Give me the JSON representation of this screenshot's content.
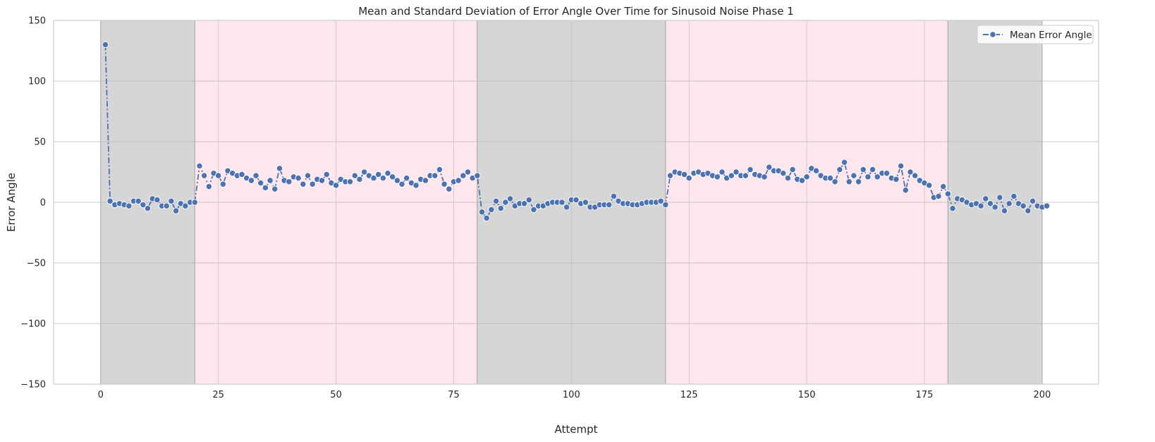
{
  "chart_data": {
    "type": "line",
    "title": "Mean and Standard Deviation of Error Angle Over Time for Sinusoid Noise Phase 1",
    "xlabel": "Attempt",
    "ylabel": "Error Angle",
    "xlim": [
      -10,
      212
    ],
    "ylim": [
      -150,
      150
    ],
    "xticks": [
      0,
      25,
      50,
      75,
      100,
      125,
      150,
      175,
      200
    ],
    "yticks": [
      -150,
      -100,
      -50,
      0,
      50,
      100,
      150
    ],
    "xtick_labels": [
      "0",
      "25",
      "50",
      "75",
      "100",
      "125",
      "150",
      "175",
      "200"
    ],
    "ytick_labels": [
      "−150",
      "−100",
      "−50",
      "0",
      "50",
      "100",
      "150"
    ],
    "grid": true,
    "legend_position": "top-right",
    "background_regions": [
      {
        "x0": 0,
        "x1": 20,
        "color": "#d6d6d6"
      },
      {
        "x0": 20,
        "x1": 80,
        "color": "#fde6ec"
      },
      {
        "x0": 80,
        "x1": 120,
        "color": "#d6d6d6"
      },
      {
        "x0": 120,
        "x1": 180,
        "color": "#fde6ec"
      },
      {
        "x0": 180,
        "x1": 200,
        "color": "#d6d6d6"
      }
    ],
    "series": [
      {
        "name": "Mean Error Angle",
        "color": "#4c72b0",
        "line_style": "dashdot",
        "marker": "circle",
        "x_start": 1,
        "x_step": 1,
        "values": [
          130,
          1,
          -2,
          -1,
          -2,
          -3,
          1,
          1,
          -2,
          -5,
          3,
          2,
          -3,
          -3,
          1,
          -7,
          -1,
          -3,
          0,
          0,
          30,
          22,
          13,
          24,
          22,
          15,
          26,
          24,
          22,
          23,
          20,
          18,
          22,
          16,
          12,
          18,
          11,
          28,
          18,
          17,
          21,
          20,
          15,
          22,
          15,
          19,
          18,
          23,
          16,
          14,
          19,
          17,
          17,
          22,
          19,
          25,
          22,
          20,
          23,
          20,
          24,
          21,
          18,
          15,
          20,
          16,
          14,
          19,
          18,
          22,
          22,
          27,
          15,
          11,
          17,
          18,
          22,
          25,
          20,
          22,
          -8,
          -13,
          -6,
          1,
          -5,
          0,
          3,
          -3,
          -1,
          -1,
          2,
          -6,
          -3,
          -3,
          -1,
          0,
          0,
          0,
          -4,
          2,
          2,
          -1,
          0,
          -4,
          -4,
          -2,
          -2,
          -2,
          5,
          1,
          -1,
          -1,
          -2,
          -2,
          -1,
          0,
          0,
          0,
          1,
          -2,
          22,
          25,
          24,
          23,
          20,
          24,
          25,
          23,
          24,
          22,
          21,
          25,
          20,
          22,
          25,
          22,
          22,
          27,
          23,
          22,
          21,
          29,
          26,
          26,
          24,
          20,
          27,
          19,
          18,
          21,
          28,
          26,
          22,
          20,
          20,
          17,
          27,
          33,
          17,
          22,
          17,
          27,
          21,
          27,
          21,
          24,
          24,
          20,
          19,
          30,
          10,
          25,
          22,
          18,
          16,
          14,
          4,
          5,
          13,
          7,
          -5,
          3,
          2,
          0,
          -2,
          -1,
          -3,
          3,
          -1,
          -4,
          4,
          -7,
          -1,
          5,
          -1,
          -3,
          -7,
          1,
          -3,
          -4,
          -3
        ]
      }
    ]
  }
}
